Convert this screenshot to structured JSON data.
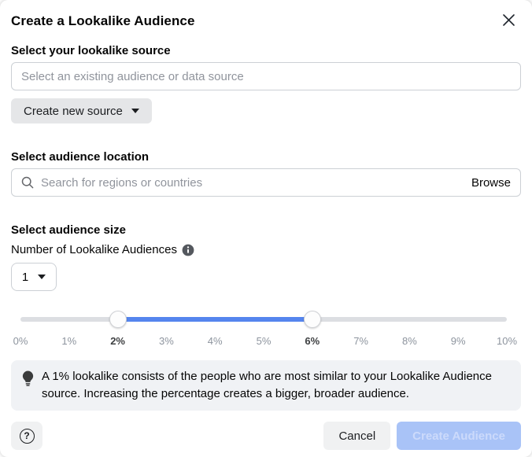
{
  "dialog": {
    "title": "Create a Lookalike Audience"
  },
  "source_section": {
    "label": "Select your lookalike source",
    "input_placeholder": "Select an existing audience or data source",
    "input_value": "",
    "create_new_source_label": "Create new source"
  },
  "location_section": {
    "label": "Select audience location",
    "search_placeholder": "Search for regions or countries",
    "search_value": "",
    "browse_label": "Browse"
  },
  "size_section": {
    "label": "Select audience size",
    "count_label": "Number of Lookalike Audiences",
    "count_value": "1",
    "slider": {
      "min_percent": 0,
      "max_percent": 10,
      "lower_value_percent": 2,
      "upper_value_percent": 6,
      "tick_labels": [
        "0%",
        "1%",
        "2%",
        "3%",
        "4%",
        "5%",
        "6%",
        "7%",
        "8%",
        "9%",
        "10%"
      ],
      "active_ticks": [
        "2%",
        "6%"
      ]
    }
  },
  "tip": {
    "text": "A 1% lookalike consists of the people who are most similar to your Lookalike Audience source. Increasing the percentage creates a bigger, broader audience."
  },
  "footer": {
    "help_icon_glyph": "?",
    "cancel_label": "Cancel",
    "create_label": "Create Audience",
    "create_enabled": false
  },
  "colors": {
    "slider_range": "#5585ee",
    "slider_track": "#dcdee2",
    "disabled_primary_bg": "#a9c3f7",
    "disabled_primary_text": "#ccdafb",
    "tip_background": "#f0f2f5",
    "secondary_button_bg": "#e5e6e8"
  }
}
